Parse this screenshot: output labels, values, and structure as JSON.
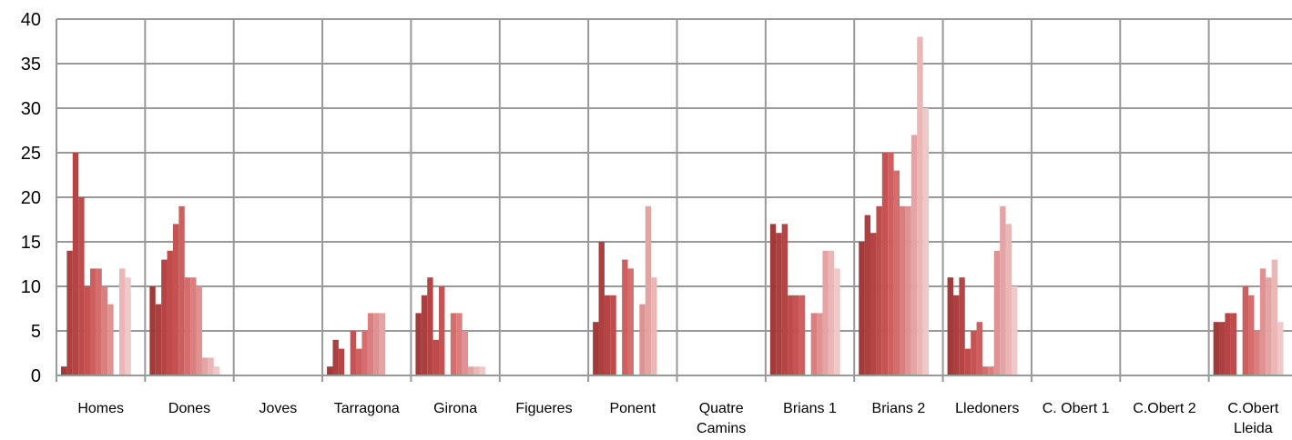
{
  "chart_data": {
    "type": "bar",
    "title": "",
    "xlabel": "",
    "ylabel": "",
    "ylim": [
      0,
      40
    ],
    "yticks": [
      0,
      5,
      10,
      15,
      20,
      25,
      30,
      35,
      40
    ],
    "grid": true,
    "legend": "none",
    "categories": [
      [
        "Homes"
      ],
      [
        "Dones"
      ],
      [
        "Joves"
      ],
      [
        "Tarragona"
      ],
      [
        "Girona"
      ],
      [
        "Figueres"
      ],
      [
        "Ponent"
      ],
      [
        "Quatre",
        "Camins"
      ],
      [
        "Brians 1"
      ],
      [
        "Brians 2"
      ],
      [
        "Lledoners"
      ],
      [
        "C. Obert 1"
      ],
      [
        "C.Obert 2"
      ],
      [
        "C.Obert",
        "Lleida"
      ]
    ],
    "series_colors": [
      "#A33A3A",
      "#AC3F3F",
      "#B54545",
      "#BF4B4B",
      "#C75252",
      "#CD5F5F",
      "#D46E6E",
      "#DA7E7E",
      "#E09191",
      "#E5A4A4",
      "#EAB6B6",
      "#EFC8C8",
      "#F3D6D6",
      "#F7E2E2",
      "#F9EAEA"
    ],
    "series_values": [
      [
        1,
        14,
        25,
        20,
        10,
        12,
        12,
        10,
        8,
        0,
        12,
        11,
        null,
        null,
        null
      ],
      [
        10,
        8,
        13,
        14,
        17,
        19,
        11,
        11,
        10,
        2,
        2,
        1,
        null,
        null,
        null
      ],
      [
        null,
        null,
        null,
        null,
        null,
        null,
        null,
        null,
        null,
        null,
        null,
        null,
        null,
        null,
        null
      ],
      [
        1,
        4,
        3,
        null,
        5,
        3,
        5,
        7,
        7,
        7,
        null,
        null,
        null,
        null,
        null
      ],
      [
        7,
        9,
        11,
        4,
        10,
        null,
        7,
        7,
        5,
        1,
        1,
        1,
        null,
        null,
        null
      ],
      [
        null,
        null,
        null,
        null,
        null,
        null,
        null,
        null,
        null,
        null,
        null,
        null,
        null,
        null,
        null
      ],
      [
        6,
        15,
        9,
        9,
        null,
        13,
        12,
        null,
        8,
        19,
        11,
        null,
        null,
        null,
        null
      ],
      [
        null,
        null,
        null,
        null,
        null,
        null,
        null,
        null,
        null,
        null,
        null,
        null,
        null,
        null,
        null
      ],
      [
        17,
        16,
        17,
        9,
        9,
        9,
        null,
        7,
        7,
        14,
        14,
        12,
        null,
        null,
        null
      ],
      [
        15,
        18,
        16,
        19,
        25,
        25,
        23,
        19,
        19,
        27,
        38,
        30,
        null,
        null,
        null
      ],
      [
        11,
        9,
        11,
        3,
        5,
        6,
        1,
        1,
        14,
        19,
        17,
        10,
        null,
        null,
        null
      ],
      [
        null,
        null,
        null,
        null,
        null,
        null,
        null,
        null,
        null,
        null,
        null,
        null,
        null,
        null,
        null
      ],
      [
        null,
        null,
        null,
        null,
        null,
        null,
        null,
        null,
        null,
        null,
        null,
        null,
        null,
        null,
        null
      ],
      [
        6,
        6,
        7,
        7,
        null,
        10,
        9,
        5,
        12,
        11,
        13,
        6,
        null,
        null,
        null
      ]
    ]
  }
}
